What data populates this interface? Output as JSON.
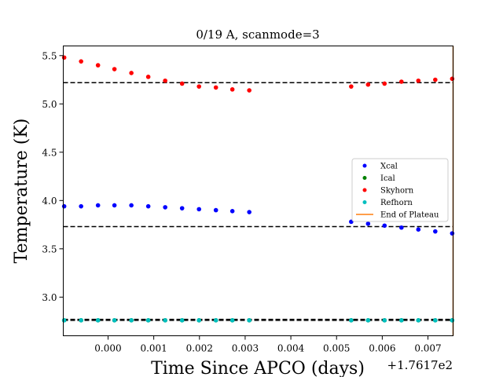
{
  "chart_data": {
    "type": "scatter",
    "title": "0/19 A, scanmode=3",
    "xlabel": "Time Since APCO (days)",
    "ylabel": "Temperature (K)",
    "x_offset_label": "+1.7617e2",
    "xlim": [
      -0.00098,
      0.00755
    ],
    "ylim": [
      2.6,
      5.6
    ],
    "xticks": [
      0.0,
      0.001,
      0.002,
      0.003,
      0.004,
      0.005,
      0.006,
      0.007
    ],
    "xtick_labels": [
      "0.000",
      "0.001",
      "0.002",
      "0.003",
      "0.004",
      "0.005",
      "0.006",
      "0.007"
    ],
    "yticks": [
      3.0,
      3.5,
      4.0,
      4.5,
      5.0,
      5.5
    ],
    "ytick_labels": [
      "3.0",
      "3.5",
      "4.0",
      "4.5",
      "5.0",
      "5.5"
    ],
    "grid": false,
    "legend_position": "right",
    "x": [
      -0.00096,
      -0.00059,
      -0.00022,
      0.00014,
      0.00051,
      0.00088,
      0.00125,
      0.00162,
      0.00199,
      0.00236,
      0.00272,
      0.00309,
      0.00532,
      0.00569,
      0.00605,
      0.00642,
      0.00679,
      0.00716,
      0.00753
    ],
    "series": [
      {
        "name": "Xcal",
        "color": "#0000ff",
        "marker": "dot",
        "values": [
          3.94,
          3.94,
          3.95,
          3.95,
          3.95,
          3.94,
          3.93,
          3.92,
          3.91,
          3.9,
          3.89,
          3.88,
          3.78,
          3.76,
          3.74,
          3.72,
          3.7,
          3.68,
          3.66
        ]
      },
      {
        "name": "Ical",
        "color": "#008000",
        "marker": "dot",
        "values": [
          2.76,
          2.76,
          2.76,
          2.76,
          2.76,
          2.76,
          2.76,
          2.76,
          2.76,
          2.76,
          2.76,
          2.76,
          2.76,
          2.76,
          2.76,
          2.76,
          2.76,
          2.76,
          2.76
        ]
      },
      {
        "name": "Skyhorn",
        "color": "#ff0000",
        "marker": "dot",
        "values": [
          5.48,
          5.44,
          5.4,
          5.36,
          5.32,
          5.28,
          5.24,
          5.21,
          5.18,
          5.17,
          5.15,
          5.14,
          5.18,
          5.2,
          5.21,
          5.23,
          5.24,
          5.25,
          5.26
        ]
      },
      {
        "name": "Refhorn",
        "color": "#00bfbf",
        "marker": "dot",
        "values": [
          2.76,
          2.76,
          2.76,
          2.76,
          2.76,
          2.76,
          2.76,
          2.76,
          2.76,
          2.76,
          2.76,
          2.76,
          2.76,
          2.76,
          2.76,
          2.76,
          2.76,
          2.76,
          2.76
        ]
      },
      {
        "name": "End of Plateau",
        "color": "#ff7f0e",
        "marker": "line",
        "values": []
      }
    ],
    "hlines": [
      {
        "y": 5.22,
        "color": "#000000",
        "style": "dashed"
      },
      {
        "y": 3.73,
        "color": "#000000",
        "style": "dashed"
      },
      {
        "y": 2.77,
        "color": "#000000",
        "style": "dashed"
      },
      {
        "y": 2.76,
        "color": "#000000",
        "style": "dashed"
      }
    ],
    "vline": {
      "x": 0.00755,
      "color": "#ff7f0e"
    }
  }
}
